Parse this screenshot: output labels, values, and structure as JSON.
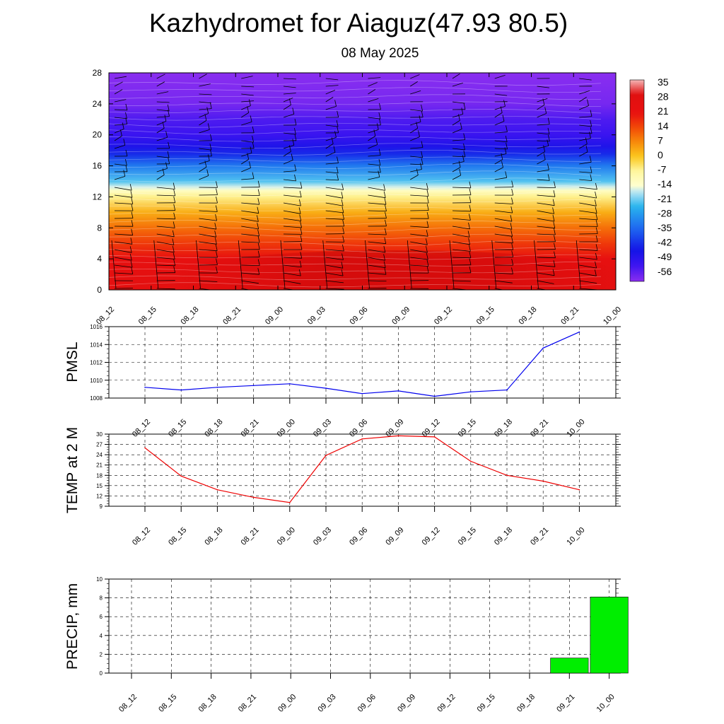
{
  "title": "Kazhydromet for Aiaguz(47.93 80.5)",
  "subtitle": "08 May 2025",
  "chart_data": [
    {
      "type": "heatmap",
      "description_of_field": "temperature cross-section with wind barbs",
      "x": [
        "08_12",
        "08_15",
        "08_18",
        "08_21",
        "09_00",
        "09_03",
        "09_06",
        "09_09",
        "09_12",
        "09_15",
        "09_18",
        "09_21",
        "10_00"
      ],
      "yticks": [
        0,
        4,
        8,
        12,
        16,
        20,
        24,
        28
      ],
      "ylim": [
        0,
        28
      ],
      "colorbar": {
        "labels": [
          "35",
          "28",
          "21",
          "14",
          "7",
          "0",
          "-7",
          "-14",
          "-21",
          "-28",
          "-35",
          "-42",
          "-49",
          "-56"
        ],
        "range": [
          -60,
          37
        ]
      },
      "color_stops": [
        {
          "v": 37,
          "c": "#f5b7b7"
        },
        {
          "v": 30,
          "c": "#e01010"
        },
        {
          "v": 21,
          "c": "#e81010"
        },
        {
          "v": 14,
          "c": "#f24a08"
        },
        {
          "v": 7,
          "c": "#f78a0a"
        },
        {
          "v": 0,
          "c": "#fbc81e"
        },
        {
          "v": -7,
          "c": "#fff7a0"
        },
        {
          "v": -14,
          "c": "#ffffd0"
        },
        {
          "v": -17,
          "c": "#b8e6f5"
        },
        {
          "v": -24,
          "c": "#28b4ee"
        },
        {
          "v": -35,
          "c": "#1e64f0"
        },
        {
          "v": -45,
          "c": "#1414e6"
        },
        {
          "v": -52,
          "c": "#3a14f0"
        },
        {
          "v": -60,
          "c": "#8a2ef0"
        }
      ],
      "profile": [
        {
          "h": 0,
          "t": 26
        },
        {
          "h": 2,
          "t": 25
        },
        {
          "h": 4,
          "t": 22
        },
        {
          "h": 6,
          "t": 16
        },
        {
          "h": 8,
          "t": 10
        },
        {
          "h": 10,
          "t": 3
        },
        {
          "h": 12,
          "t": -6
        },
        {
          "h": 12.8,
          "t": -12
        },
        {
          "h": 13.3,
          "t": -16
        },
        {
          "h": 14,
          "t": -22
        },
        {
          "h": 16,
          "t": -32
        },
        {
          "h": 17.5,
          "t": -42
        },
        {
          "h": 18.5,
          "t": -47
        },
        {
          "h": 20,
          "t": -52
        },
        {
          "h": 22,
          "t": -54
        },
        {
          "h": 24,
          "t": -58
        },
        {
          "h": 28,
          "t": -60
        }
      ]
    },
    {
      "type": "line",
      "ylabel": "PMSL",
      "x": [
        "08_12",
        "08_15",
        "08_18",
        "08_21",
        "09_00",
        "09_03",
        "09_06",
        "09_09",
        "09_12",
        "09_15",
        "09_18",
        "09_21",
        "10_00"
      ],
      "values": [
        1009.2,
        1008.9,
        1009.2,
        1009.4,
        1009.6,
        1009.1,
        1008.5,
        1008.8,
        1008.2,
        1008.7,
        1008.9,
        1013.6,
        1015.4
      ],
      "ylim": [
        1008,
        1016
      ],
      "yticks": [
        1008,
        1010,
        1012,
        1014,
        1016
      ],
      "color": "#0000ee",
      "grid": true
    },
    {
      "type": "line",
      "ylabel": "TEMP at 2 M",
      "x": [
        "08_12",
        "08_15",
        "08_18",
        "08_21",
        "09_00",
        "09_03",
        "09_06",
        "09_09",
        "09_12",
        "09_15",
        "09_18",
        "09_21",
        "10_00"
      ],
      "values": [
        26.0,
        17.8,
        13.8,
        11.6,
        10.1,
        23.8,
        28.6,
        29.5,
        29.2,
        22.1,
        18.0,
        16.3,
        13.8
      ],
      "ylim": [
        9,
        30
      ],
      "yticks": [
        9,
        12,
        15,
        18,
        21,
        24,
        27,
        30
      ],
      "color": "#ee0000",
      "grid": true
    },
    {
      "type": "bar",
      "ylabel": "PRECIP, mm",
      "categories": [
        "08_12",
        "08_15",
        "08_18",
        "08_21",
        "09_00",
        "09_03",
        "09_06",
        "09_09",
        "09_12",
        "09_15",
        "09_18",
        "09_21",
        "10_00"
      ],
      "values": [
        0,
        0,
        0,
        0,
        0,
        0,
        0,
        0,
        0,
        0,
        0,
        1.6,
        8.1
      ],
      "ylim": [
        0,
        10
      ],
      "yticks": [
        0,
        2,
        4,
        6,
        8,
        10
      ],
      "color": "#00ee00",
      "grid": true
    }
  ]
}
